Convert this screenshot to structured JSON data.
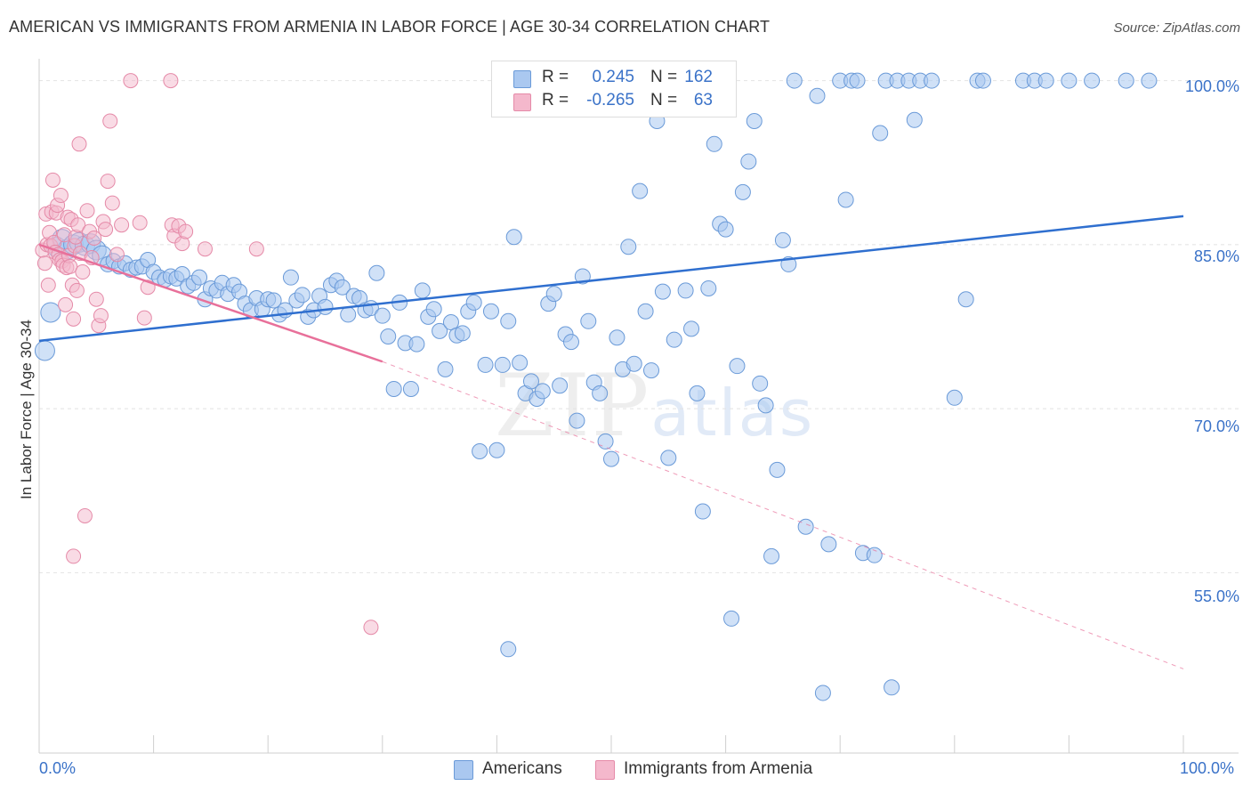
{
  "title": "AMERICAN VS IMMIGRANTS FROM ARMENIA IN LABOR FORCE | AGE 30-34 CORRELATION CHART",
  "source": "Source: ZipAtlas.com",
  "watermark": {
    "zip": "ZIP",
    "atlas": "atlas"
  },
  "legend_top": {
    "rows": [
      {
        "r_label": "R =",
        "r_value": "0.245",
        "n_label": "N =",
        "n_value": "162",
        "color": "#aac8f0"
      },
      {
        "r_label": "R =",
        "r_value": "-0.265",
        "n_label": "N =",
        "n_value": "63",
        "color": "#f4b8cc"
      }
    ]
  },
  "legend_bottom": [
    {
      "label": "Americans",
      "color": "#aac8f0"
    },
    {
      "label": "Immigrants from Armenia",
      "color": "#f4b8cc"
    }
  ],
  "chart_data": {
    "type": "scatter",
    "ylabel": "In Labor Force | Age 30-34",
    "xlim": [
      0,
      100
    ],
    "ylim": [
      38.5,
      102
    ],
    "x_tick_labels": [
      "0.0%",
      "100.0%"
    ],
    "y_ticks": [
      100,
      85,
      70,
      55
    ],
    "y_tick_labels": [
      "100.0%",
      "85.0%",
      "70.0%",
      "55.0%"
    ],
    "grid": true,
    "colors": {
      "americans_fill": "#aac8f0",
      "americans_stroke": "#6a9ad8",
      "americans_line": "#2f6fcf",
      "armenia_fill": "#f4b8cc",
      "armenia_stroke": "#e58aa8",
      "armenia_line": "#e8709a"
    },
    "series": [
      {
        "name": "Americans",
        "trend": {
          "x": [
            0,
            100
          ],
          "y": [
            76.2,
            87.6
          ]
        },
        "points": [
          [
            0.5,
            75.3
          ],
          [
            1,
            78.8
          ],
          [
            1.5,
            84.8
          ],
          [
            2,
            85.5
          ],
          [
            2.5,
            84.6
          ],
          [
            3,
            85.0
          ],
          [
            3.5,
            85.2
          ],
          [
            4,
            84.9
          ],
          [
            4.5,
            85.1
          ],
          [
            5,
            84.5
          ],
          [
            5.5,
            84.0
          ],
          [
            6,
            83.2
          ],
          [
            6.5,
            83.5
          ],
          [
            7,
            83.0
          ],
          [
            7.5,
            83.3
          ],
          [
            8,
            82.7
          ],
          [
            8.5,
            82.9
          ],
          [
            9,
            83.0
          ],
          [
            9.5,
            83.6
          ],
          [
            10,
            82.5
          ],
          [
            10.5,
            82.0
          ],
          [
            11,
            81.8
          ],
          [
            11.5,
            82.1
          ],
          [
            12,
            81.9
          ],
          [
            12.5,
            82.3
          ],
          [
            13,
            81.2
          ],
          [
            13.5,
            81.5
          ],
          [
            14,
            82.0
          ],
          [
            14.5,
            80.0
          ],
          [
            15,
            81.0
          ],
          [
            15.5,
            80.8
          ],
          [
            16,
            81.5
          ],
          [
            16.5,
            80.5
          ],
          [
            17,
            81.3
          ],
          [
            17.5,
            80.7
          ],
          [
            18,
            79.6
          ],
          [
            18.5,
            79.0
          ],
          [
            19,
            80.1
          ],
          [
            19.5,
            79.1
          ],
          [
            20,
            80.0
          ],
          [
            20.5,
            79.9
          ],
          [
            21,
            78.6
          ],
          [
            21.5,
            79.0
          ],
          [
            22,
            82.0
          ],
          [
            22.5,
            79.9
          ],
          [
            23,
            80.4
          ],
          [
            23.5,
            78.4
          ],
          [
            24,
            79.0
          ],
          [
            24.5,
            80.3
          ],
          [
            25,
            79.3
          ],
          [
            25.5,
            81.3
          ],
          [
            26,
            81.7
          ],
          [
            26.5,
            81.1
          ],
          [
            27,
            78.6
          ],
          [
            27.5,
            80.3
          ],
          [
            28,
            80.1
          ],
          [
            28.5,
            79.0
          ],
          [
            29,
            79.2
          ],
          [
            29.5,
            82.4
          ],
          [
            30,
            78.5
          ],
          [
            30.5,
            76.6
          ],
          [
            31,
            71.8
          ],
          [
            31.5,
            79.7
          ],
          [
            32,
            76.0
          ],
          [
            32.5,
            71.8
          ],
          [
            33,
            75.9
          ],
          [
            33.5,
            80.8
          ],
          [
            34,
            78.4
          ],
          [
            34.5,
            79.1
          ],
          [
            35,
            77.1
          ],
          [
            35.5,
            73.6
          ],
          [
            36,
            77.9
          ],
          [
            36.5,
            76.7
          ],
          [
            37,
            76.9
          ],
          [
            37.5,
            78.9
          ],
          [
            38,
            79.7
          ],
          [
            38.5,
            66.1
          ],
          [
            39,
            74.0
          ],
          [
            39.5,
            78.9
          ],
          [
            40,
            66.2
          ],
          [
            40.5,
            74.0
          ],
          [
            41,
            78.0
          ],
          [
            41.5,
            85.7
          ],
          [
            42,
            74.2
          ],
          [
            42.5,
            71.4
          ],
          [
            43,
            72.5
          ],
          [
            43.5,
            70.9
          ],
          [
            44,
            71.6
          ],
          [
            44.5,
            79.6
          ],
          [
            45,
            80.5
          ],
          [
            45.5,
            72.1
          ],
          [
            46,
            76.8
          ],
          [
            46.5,
            76.1
          ],
          [
            47,
            68.9
          ],
          [
            47.5,
            82.1
          ],
          [
            48,
            78.0
          ],
          [
            48.5,
            72.4
          ],
          [
            49,
            71.4
          ],
          [
            49.5,
            67.0
          ],
          [
            50,
            65.4
          ],
          [
            50.5,
            76.5
          ],
          [
            51,
            73.6
          ],
          [
            51.5,
            84.8
          ],
          [
            52,
            74.1
          ],
          [
            52.5,
            89.9
          ],
          [
            53,
            78.9
          ],
          [
            53.5,
            73.5
          ],
          [
            54,
            96.3
          ],
          [
            54.5,
            80.7
          ],
          [
            55,
            65.5
          ],
          [
            55.5,
            76.3
          ],
          [
            56,
            100.0
          ],
          [
            56.5,
            80.8
          ],
          [
            57,
            77.3
          ],
          [
            57.5,
            71.4
          ],
          [
            58,
            60.6
          ],
          [
            58.5,
            81.0
          ],
          [
            59,
            94.2
          ],
          [
            59.5,
            86.9
          ],
          [
            60,
            86.4
          ],
          [
            60.5,
            50.8
          ],
          [
            61,
            73.9
          ],
          [
            61.5,
            89.8
          ],
          [
            62,
            92.6
          ],
          [
            62.5,
            96.3
          ],
          [
            63,
            72.3
          ],
          [
            63.5,
            70.3
          ],
          [
            64,
            56.5
          ],
          [
            64.5,
            64.4
          ],
          [
            65,
            85.4
          ],
          [
            65.5,
            83.2
          ],
          [
            66,
            100.0
          ],
          [
            67,
            59.2
          ],
          [
            68,
            98.6
          ],
          [
            68.5,
            44.0
          ],
          [
            69,
            57.6
          ],
          [
            70,
            100.0
          ],
          [
            70.5,
            89.1
          ],
          [
            71,
            100.0
          ],
          [
            71.5,
            100.0
          ],
          [
            72,
            56.8
          ],
          [
            73,
            56.6
          ],
          [
            73.5,
            95.2
          ],
          [
            74,
            100.0
          ],
          [
            74.5,
            44.5
          ],
          [
            75,
            100.0
          ],
          [
            76,
            100.0
          ],
          [
            76.5,
            96.4
          ],
          [
            77,
            100.0
          ],
          [
            78,
            100.0
          ],
          [
            80,
            71.0
          ],
          [
            81,
            80.0
          ],
          [
            82,
            100.0
          ],
          [
            82.5,
            100.0
          ],
          [
            86,
            100.0
          ],
          [
            87,
            100.0
          ],
          [
            88,
            100.0
          ],
          [
            90,
            100.0
          ],
          [
            92,
            100.0
          ],
          [
            95,
            100.0
          ],
          [
            97,
            100.0
          ],
          [
            41,
            48.0
          ],
          [
            58.5,
            100.0
          ]
        ]
      },
      {
        "name": "Immigrants from Armenia",
        "trend_solid": {
          "x": [
            0,
            30
          ],
          "y": [
            85.0,
            74.3
          ]
        },
        "trend_dashed": {
          "x": [
            30,
            100
          ],
          "y": [
            74.3,
            46.2
          ]
        },
        "points": [
          [
            0.3,
            84.5
          ],
          [
            0.5,
            83.3
          ],
          [
            0.6,
            87.8
          ],
          [
            0.7,
            85.0
          ],
          [
            0.8,
            81.3
          ],
          [
            0.9,
            86.1
          ],
          [
            1.0,
            84.9
          ],
          [
            1.1,
            88.0
          ],
          [
            1.2,
            90.9
          ],
          [
            1.3,
            85.2
          ],
          [
            1.4,
            84.3
          ],
          [
            1.5,
            87.9
          ],
          [
            1.6,
            88.6
          ],
          [
            1.7,
            84.1
          ],
          [
            1.8,
            83.6
          ],
          [
            1.9,
            89.5
          ],
          [
            2.0,
            83.5
          ],
          [
            2.1,
            83.1
          ],
          [
            2.2,
            85.9
          ],
          [
            2.3,
            79.5
          ],
          [
            2.4,
            82.9
          ],
          [
            2.5,
            87.5
          ],
          [
            2.6,
            84.0
          ],
          [
            2.7,
            83.0
          ],
          [
            2.8,
            87.3
          ],
          [
            2.9,
            81.3
          ],
          [
            3.0,
            78.2
          ],
          [
            3.1,
            84.9
          ],
          [
            3.2,
            85.7
          ],
          [
            3.3,
            80.8
          ],
          [
            3.4,
            86.8
          ],
          [
            3.5,
            94.2
          ],
          [
            3.6,
            84.2
          ],
          [
            3.8,
            82.5
          ],
          [
            4.0,
            60.2
          ],
          [
            4.2,
            88.1
          ],
          [
            4.4,
            86.2
          ],
          [
            4.6,
            83.8
          ],
          [
            4.8,
            85.6
          ],
          [
            5.0,
            80.0
          ],
          [
            5.2,
            77.6
          ],
          [
            5.4,
            78.5
          ],
          [
            5.6,
            87.1
          ],
          [
            5.8,
            86.4
          ],
          [
            6.0,
            90.8
          ],
          [
            6.2,
            96.3
          ],
          [
            6.4,
            88.8
          ],
          [
            6.8,
            84.1
          ],
          [
            7.2,
            86.8
          ],
          [
            8.0,
            100.0
          ],
          [
            8.8,
            87.0
          ],
          [
            9.2,
            78.3
          ],
          [
            9.5,
            81.1
          ],
          [
            11.5,
            100.0
          ],
          [
            11.6,
            86.8
          ],
          [
            11.8,
            85.8
          ],
          [
            12.2,
            86.7
          ],
          [
            12.5,
            85.1
          ],
          [
            12.8,
            86.2
          ],
          [
            14.5,
            84.6
          ],
          [
            19.0,
            84.6
          ],
          [
            29.0,
            50.0
          ],
          [
            3.0,
            56.5
          ]
        ]
      }
    ]
  }
}
